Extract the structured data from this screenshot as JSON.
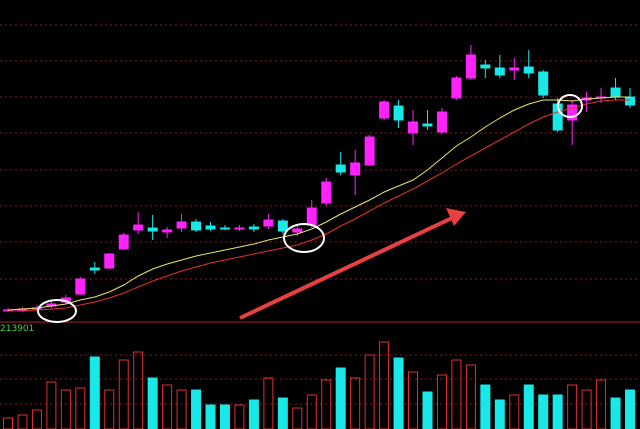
{
  "chart_data": {
    "type": "candlestick",
    "volume_label": "213901",
    "up_color": "#ff22ff",
    "down_color": "#19e8e8",
    "ma_colors": [
      "#e8e860",
      "#e03030"
    ],
    "ylim": [
      0,
      320
    ],
    "volume_ylim": [
      0,
      90
    ],
    "open": [
      10,
      10,
      11,
      14,
      18,
      26,
      52,
      52,
      71,
      90,
      92,
      88,
      92,
      98,
      94,
      92,
      91,
      93,
      94,
      99,
      88,
      95,
      117,
      155,
      145,
      155,
      202,
      214,
      187,
      196,
      188,
      222,
      242,
      255,
      252,
      250,
      253,
      248,
      216,
      200,
      220,
      222,
      232,
      223
    ],
    "close": [
      10,
      11,
      12,
      16,
      22,
      41,
      50,
      66,
      85,
      95,
      89,
      90,
      98,
      90,
      91,
      91,
      92,
      91,
      100,
      89,
      91,
      112,
      138,
      148,
      157,
      183,
      218,
      200,
      198,
      194,
      208,
      242,
      265,
      252,
      245,
      252,
      247,
      225,
      190,
      215,
      222,
      223,
      223,
      215
    ],
    "high": [
      12,
      13,
      15,
      20,
      25,
      43,
      58,
      67,
      87,
      108,
      105,
      93,
      106,
      101,
      98,
      95,
      95,
      96,
      106,
      101,
      95,
      120,
      142,
      168,
      170,
      185,
      220,
      220,
      210,
      210,
      212,
      244,
      275,
      260,
      265,
      262,
      270,
      250,
      222,
      220,
      228,
      232,
      242,
      232
    ],
    "low": [
      8,
      8,
      9,
      12,
      16,
      25,
      46,
      51,
      70,
      86,
      80,
      82,
      88,
      88,
      89,
      90,
      89,
      88,
      91,
      86,
      84,
      92,
      114,
      145,
      125,
      154,
      200,
      192,
      175,
      190,
      186,
      220,
      240,
      242,
      242,
      240,
      242,
      222,
      188,
      175,
      208,
      217,
      220,
      212
    ],
    "ma": [
      [
        10,
        11,
        12,
        14,
        16,
        20,
        23,
        28,
        35,
        44,
        51,
        56,
        60,
        64,
        67,
        70,
        73,
        76,
        80,
        83,
        86,
        91,
        98,
        106,
        113,
        120,
        128,
        134,
        140,
        150,
        162,
        174,
        183,
        193,
        202,
        210,
        216,
        220,
        220,
        219,
        221,
        222,
        223,
        223
      ],
      [
        9,
        9,
        10,
        11,
        12,
        15,
        18,
        22,
        27,
        33,
        39,
        44,
        49,
        53,
        57,
        60,
        63,
        66,
        69,
        72,
        75,
        80,
        86,
        94,
        101,
        109,
        117,
        124,
        131,
        139,
        147,
        156,
        164,
        172,
        180,
        188,
        196,
        203,
        208,
        212,
        216,
        219,
        220,
        220
      ]
    ],
    "volume": [
      11,
      14,
      19,
      47,
      39,
      41,
      72,
      39,
      69,
      77,
      51,
      44,
      39,
      39,
      24,
      24,
      24,
      29,
      51,
      31,
      21,
      34,
      49,
      61,
      51,
      74,
      87,
      71,
      57,
      37,
      54,
      69,
      64,
      44,
      29,
      34,
      44,
      34,
      34,
      44,
      39,
      49,
      31,
      39
    ]
  }
}
